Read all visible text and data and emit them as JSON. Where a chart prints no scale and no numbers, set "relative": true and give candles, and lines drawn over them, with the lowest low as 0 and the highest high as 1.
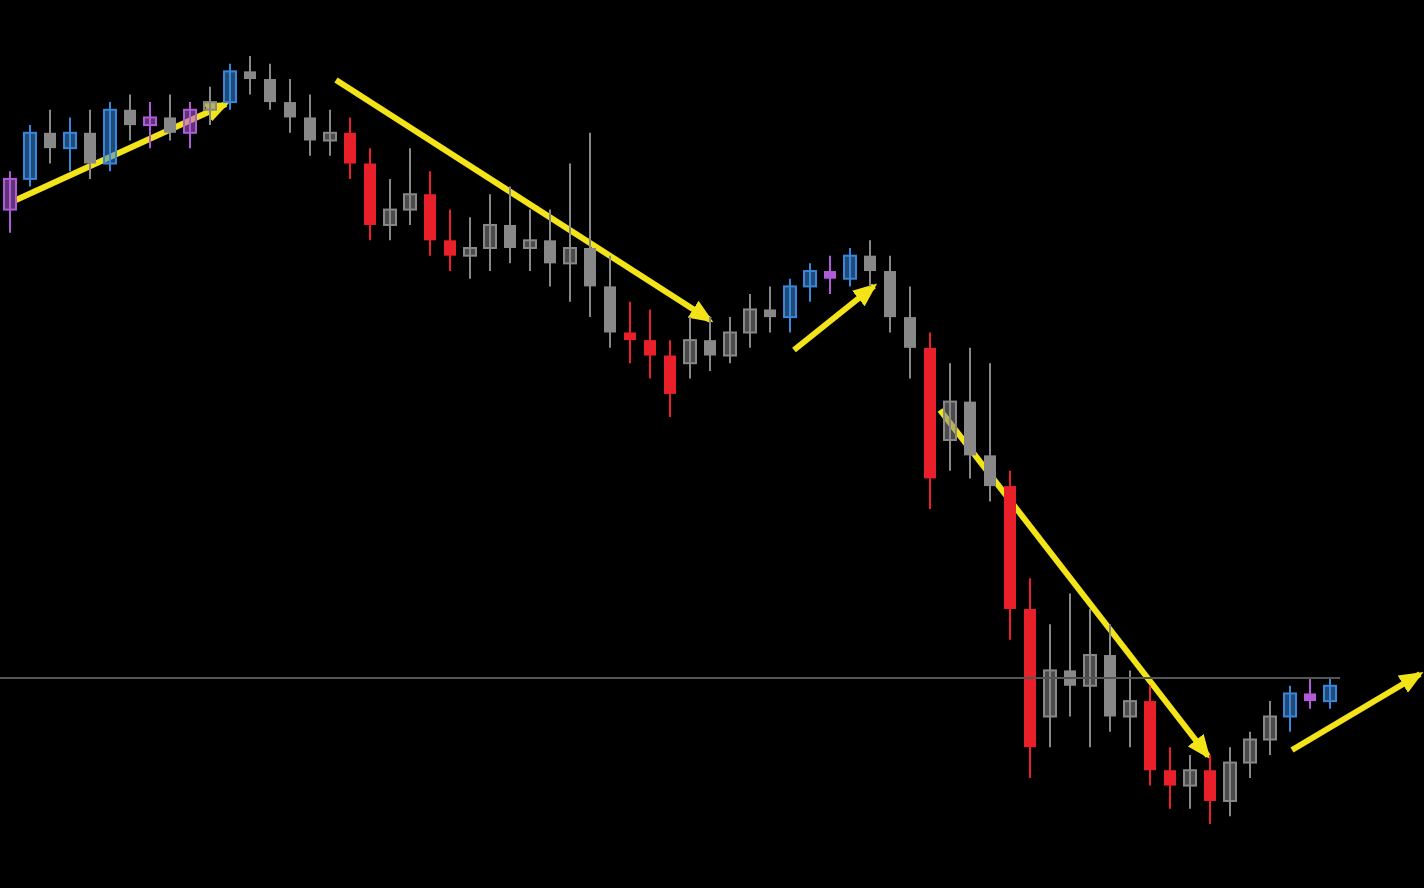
{
  "chart_data": {
    "type": "candlestick",
    "relative": true,
    "grid": false,
    "legend": false,
    "categories": [
      null,
      null,
      null,
      null,
      null,
      null,
      null,
      null,
      null,
      null,
      null,
      null,
      null,
      null,
      null,
      null,
      null,
      null,
      null,
      null,
      null,
      null,
      null,
      null,
      null,
      null,
      null,
      null,
      null,
      null,
      null,
      null,
      null,
      null,
      null,
      null,
      null,
      null,
      null,
      null,
      null,
      null,
      null,
      null,
      null,
      null,
      null,
      null,
      null,
      null,
      null,
      null,
      null,
      null,
      null,
      null,
      null,
      null,
      null,
      null,
      null,
      null,
      null,
      null,
      null,
      null,
      null
    ],
    "ohlc": [
      [
        0.8,
        0.85,
        0.77,
        0.84
      ],
      [
        0.84,
        0.91,
        0.83,
        0.9
      ],
      [
        0.9,
        0.93,
        0.86,
        0.88
      ],
      [
        0.88,
        0.92,
        0.85,
        0.9
      ],
      [
        0.9,
        0.93,
        0.84,
        0.86
      ],
      [
        0.86,
        0.94,
        0.85,
        0.93
      ],
      [
        0.93,
        0.95,
        0.89,
        0.91
      ],
      [
        0.91,
        0.94,
        0.88,
        0.92
      ],
      [
        0.92,
        0.95,
        0.89,
        0.9
      ],
      [
        0.9,
        0.94,
        0.88,
        0.93
      ],
      [
        0.93,
        0.96,
        0.91,
        0.94
      ],
      [
        0.94,
        0.99,
        0.93,
        0.98
      ],
      [
        0.98,
        1.0,
        0.95,
        0.97
      ],
      [
        0.97,
        0.99,
        0.93,
        0.94
      ],
      [
        0.94,
        0.97,
        0.9,
        0.92
      ],
      [
        0.92,
        0.95,
        0.87,
        0.89
      ],
      [
        0.89,
        0.93,
        0.87,
        0.9
      ],
      [
        0.9,
        0.92,
        0.84,
        0.86
      ],
      [
        0.86,
        0.88,
        0.76,
        0.78
      ],
      [
        0.78,
        0.84,
        0.76,
        0.8
      ],
      [
        0.8,
        0.88,
        0.78,
        0.82
      ],
      [
        0.82,
        0.85,
        0.74,
        0.76
      ],
      [
        0.76,
        0.8,
        0.72,
        0.74
      ],
      [
        0.74,
        0.79,
        0.71,
        0.75
      ],
      [
        0.75,
        0.82,
        0.72,
        0.78
      ],
      [
        0.78,
        0.83,
        0.73,
        0.75
      ],
      [
        0.75,
        0.8,
        0.72,
        0.76
      ],
      [
        0.76,
        0.8,
        0.7,
        0.73
      ],
      [
        0.73,
        0.86,
        0.68,
        0.75
      ],
      [
        0.75,
        0.9,
        0.66,
        0.7
      ],
      [
        0.7,
        0.74,
        0.62,
        0.64
      ],
      [
        0.64,
        0.68,
        0.6,
        0.63
      ],
      [
        0.63,
        0.67,
        0.58,
        0.61
      ],
      [
        0.61,
        0.63,
        0.53,
        0.56
      ],
      [
        0.6,
        0.66,
        0.58,
        0.63
      ],
      [
        0.63,
        0.66,
        0.59,
        0.61
      ],
      [
        0.61,
        0.66,
        0.6,
        0.64
      ],
      [
        0.64,
        0.69,
        0.62,
        0.67
      ],
      [
        0.67,
        0.7,
        0.64,
        0.66
      ],
      [
        0.66,
        0.71,
        0.64,
        0.7
      ],
      [
        0.7,
        0.73,
        0.68,
        0.72
      ],
      [
        0.72,
        0.74,
        0.69,
        0.71
      ],
      [
        0.71,
        0.75,
        0.7,
        0.74
      ],
      [
        0.74,
        0.76,
        0.7,
        0.72
      ],
      [
        0.72,
        0.74,
        0.64,
        0.66
      ],
      [
        0.66,
        0.7,
        0.58,
        0.62
      ],
      [
        0.62,
        0.64,
        0.41,
        0.45
      ],
      [
        0.5,
        0.6,
        0.46,
        0.55
      ],
      [
        0.55,
        0.62,
        0.45,
        0.48
      ],
      [
        0.48,
        0.6,
        0.42,
        0.44
      ],
      [
        0.44,
        0.46,
        0.24,
        0.28
      ],
      [
        0.28,
        0.32,
        0.06,
        0.1
      ],
      [
        0.14,
        0.26,
        0.1,
        0.2
      ],
      [
        0.2,
        0.3,
        0.14,
        0.18
      ],
      [
        0.18,
        0.28,
        0.1,
        0.22
      ],
      [
        0.22,
        0.26,
        0.12,
        0.14
      ],
      [
        0.14,
        0.2,
        0.1,
        0.16
      ],
      [
        0.16,
        0.18,
        0.05,
        0.07
      ],
      [
        0.07,
        0.1,
        0.02,
        0.05
      ],
      [
        0.05,
        0.09,
        0.02,
        0.07
      ],
      [
        0.07,
        0.09,
        0.0,
        0.03
      ],
      [
        0.03,
        0.1,
        0.01,
        0.08
      ],
      [
        0.08,
        0.12,
        0.06,
        0.11
      ],
      [
        0.11,
        0.16,
        0.09,
        0.14
      ],
      [
        0.14,
        0.18,
        0.12,
        0.17
      ],
      [
        0.17,
        0.19,
        0.15,
        0.16
      ],
      [
        0.16,
        0.19,
        0.15,
        0.18
      ]
    ],
    "colors": [
      "#b05cd8",
      "#3a86d8",
      "#888888",
      "#3a86d8",
      "#888888",
      "#3a86d8",
      "#888888",
      "#b05cd8",
      "#888888",
      "#b05cd8",
      "#888888",
      "#3a86d8",
      "#888888",
      "#888888",
      "#888888",
      "#888888",
      "#888888",
      "#e8202a",
      "#e8202a",
      "#888888",
      "#888888",
      "#e8202a",
      "#e8202a",
      "#888888",
      "#888888",
      "#888888",
      "#888888",
      "#888888",
      "#888888",
      "#888888",
      "#888888",
      "#e8202a",
      "#e8202a",
      "#e8202a",
      "#888888",
      "#888888",
      "#888888",
      "#888888",
      "#888888",
      "#3a86d8",
      "#3a86d8",
      "#b05cd8",
      "#3a86d8",
      "#888888",
      "#888888",
      "#888888",
      "#e8202a",
      "#888888",
      "#888888",
      "#888888",
      "#e8202a",
      "#e8202a",
      "#888888",
      "#888888",
      "#888888",
      "#888888",
      "#888888",
      "#e8202a",
      "#e8202a",
      "#888888",
      "#e8202a",
      "#888888",
      "#888888",
      "#888888",
      "#3a86d8",
      "#b05cd8",
      "#3a86d8"
    ],
    "ref_lines": [
      {
        "axis": "y",
        "value": 0.19,
        "color": "#555555"
      }
    ]
  }
}
